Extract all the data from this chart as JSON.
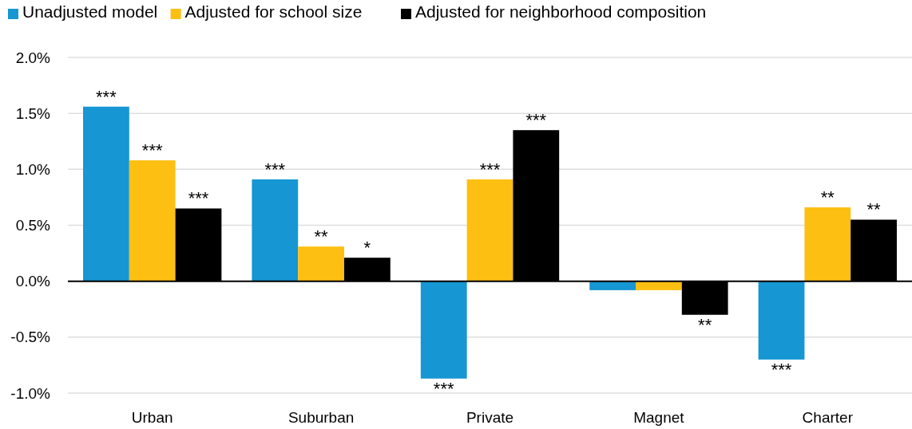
{
  "chart_data": {
    "type": "bar",
    "categories": [
      "Urban",
      "Suburban",
      "Private",
      "Magnet",
      "Charter"
    ],
    "series": [
      {
        "name": "Unadjusted model",
        "color": "#1696d2",
        "values": [
          1.56,
          0.91,
          -0.87,
          -0.08,
          -0.7
        ],
        "value_labels": [
          "***",
          "***",
          "***",
          null,
          "***"
        ]
      },
      {
        "name": "Adjusted for school size",
        "color": "#fdbf11",
        "values": [
          1.08,
          0.31,
          0.91,
          -0.08,
          0.66
        ],
        "value_labels": [
          "***",
          "**",
          "***",
          null,
          "**"
        ]
      },
      {
        "name": "Adjusted for neighborhood composition",
        "color": "#000000",
        "values": [
          0.65,
          0.21,
          1.35,
          -0.3,
          0.55
        ],
        "value_labels": [
          "***",
          "*",
          "***",
          "**",
          "**"
        ]
      }
    ],
    "ylim": [
      -1,
      2
    ],
    "yticks": [
      {
        "value": -1,
        "label": "-1.0%"
      },
      {
        "value": -0.5,
        "label": "-0.5%"
      },
      {
        "value": 0,
        "label": "0.0%"
      },
      {
        "value": 0.5,
        "label": "0.5%"
      },
      {
        "value": 1,
        "label": "1.0%"
      },
      {
        "value": 1.5,
        "label": "1.5%"
      },
      {
        "value": 2,
        "label": "2.0%"
      }
    ],
    "grid": "y",
    "legend": "top left"
  }
}
